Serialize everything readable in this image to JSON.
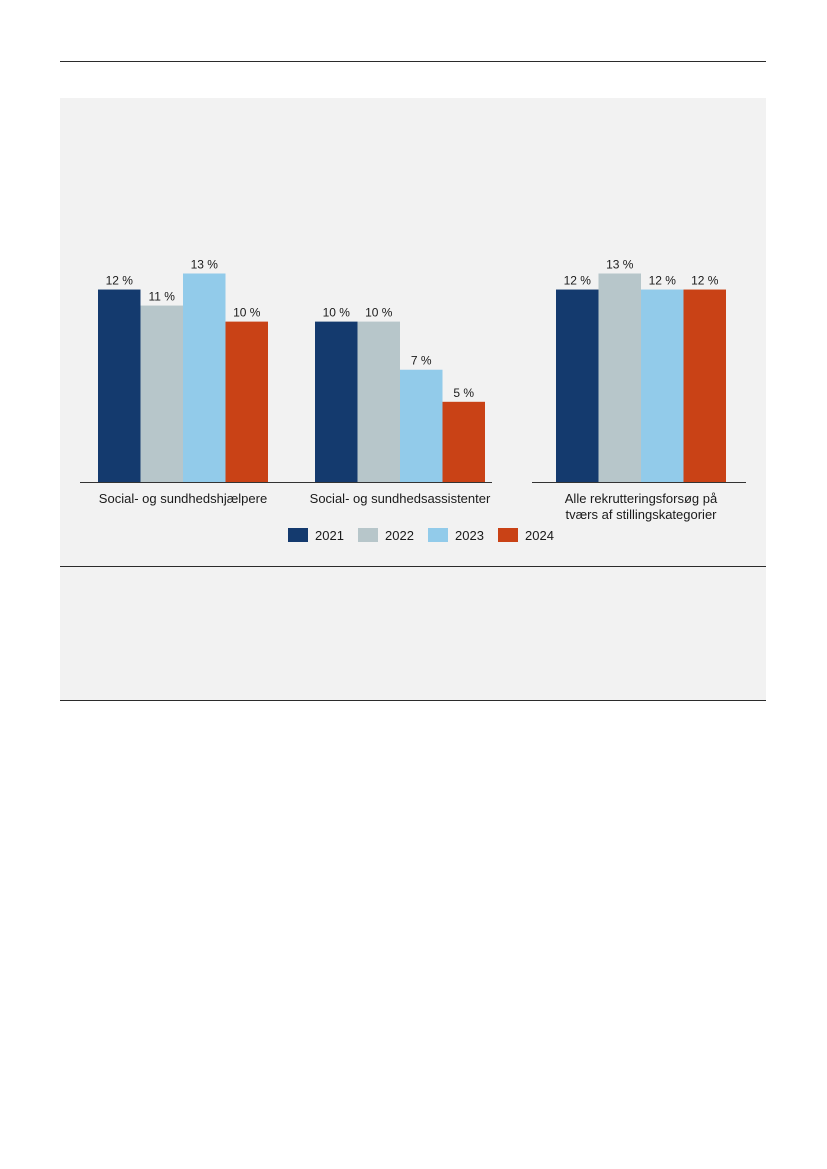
{
  "chart_data": {
    "type": "bar",
    "categories": [
      [
        "Social- og sundhedshjælpere"
      ],
      [
        "Social- og sundhedsassistenter"
      ],
      [
        "Alle rekrutteringsforsøg på",
        "tværs af stillingskategorier"
      ]
    ],
    "series": [
      {
        "name": "2021",
        "color": "#143a6e",
        "values": [
          12,
          10,
          12
        ],
        "labels": [
          "12 %",
          "10 %",
          "12 %"
        ]
      },
      {
        "name": "2022",
        "color": "#b7c6ca",
        "values": [
          11,
          10,
          13
        ],
        "labels": [
          "11 %",
          "10 %",
          "13 %"
        ]
      },
      {
        "name": "2023",
        "color": "#92cbea",
        "values": [
          13,
          7,
          12
        ],
        "labels": [
          "13 %",
          "7 %",
          "12 %"
        ]
      },
      {
        "name": "2024",
        "color": "#c94216",
        "values": [
          10,
          5,
          12
        ],
        "labels": [
          "10 %",
          "5 %",
          "12 %"
        ]
      }
    ],
    "ylim": [
      0,
      15.4
    ],
    "grid": false,
    "legend": "bottom-center"
  }
}
